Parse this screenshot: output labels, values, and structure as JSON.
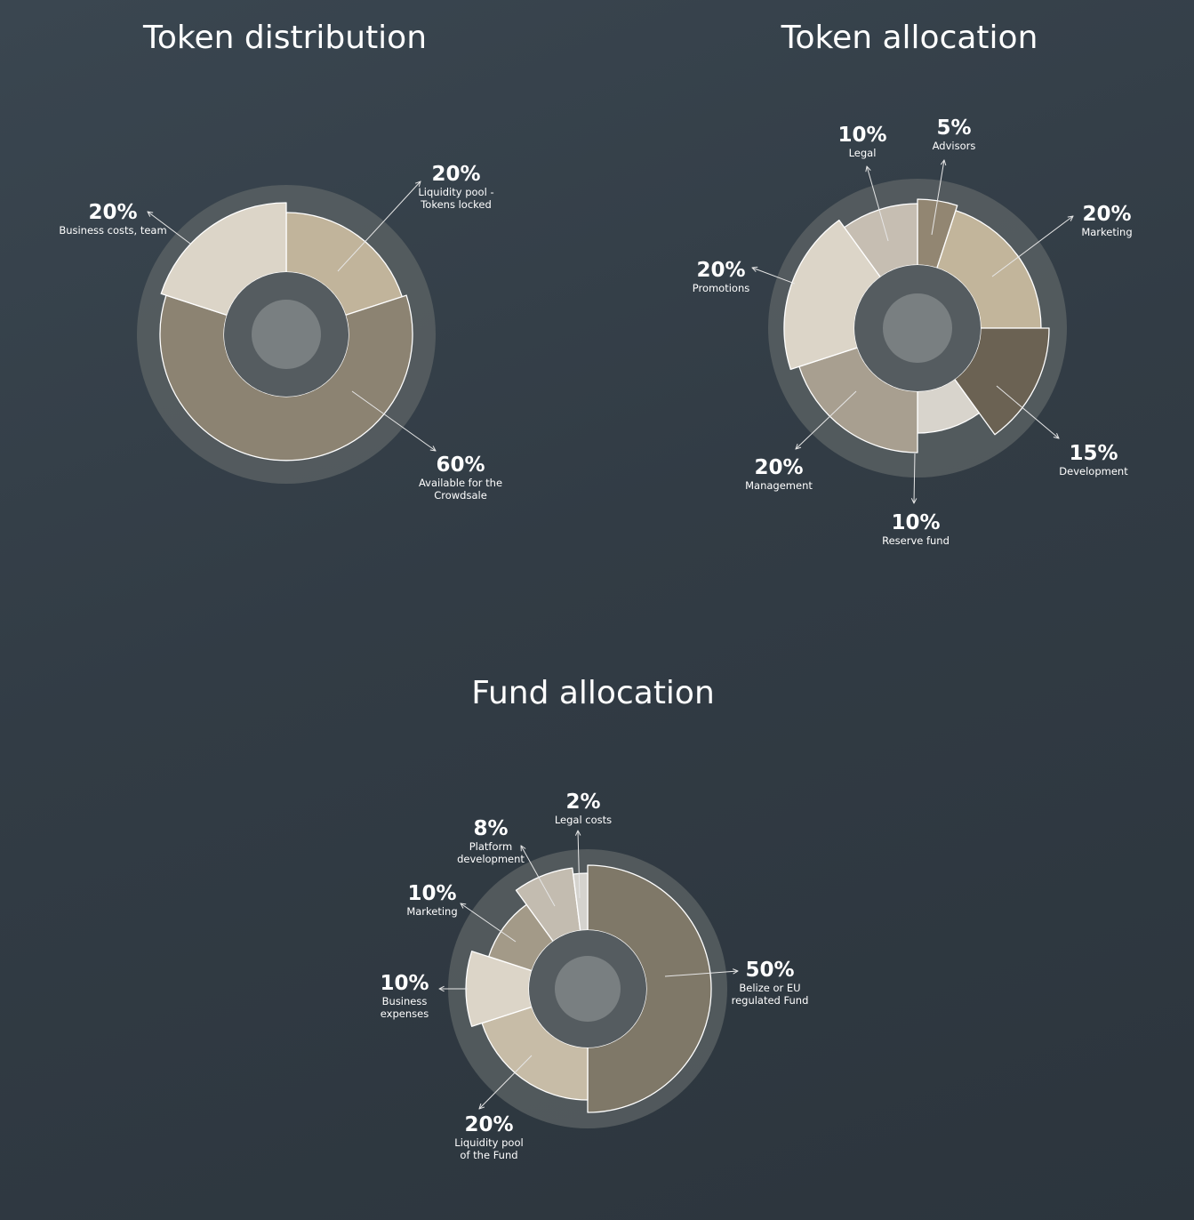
{
  "chart_data": [
    {
      "type": "pie",
      "title": "Token distribution",
      "slices": [
        {
          "value": 20,
          "percent_label": "20%",
          "label_lines": [
            "Liquidity pool -",
            "Tokens locked"
          ],
          "color": "#c1b49b"
        },
        {
          "value": 60,
          "percent_label": "60%",
          "label_lines": [
            "Available for the",
            "Crowdsale"
          ],
          "color": "#8c8372"
        },
        {
          "value": 20,
          "percent_label": "20%",
          "label_lines": [
            "Business costs, team"
          ],
          "color": "#dcd5c8"
        }
      ]
    },
    {
      "type": "pie",
      "title": "Token allocation",
      "slices": [
        {
          "value": 5,
          "percent_label": "5%",
          "label_lines": [
            "Advisors"
          ],
          "color": "#928672"
        },
        {
          "value": 20,
          "percent_label": "20%",
          "label_lines": [
            "Marketing"
          ],
          "color": "#c2b59b"
        },
        {
          "value": 15,
          "percent_label": "15%",
          "label_lines": [
            "Development"
          ],
          "color": "#6b6253"
        },
        {
          "value": 10,
          "percent_label": "10%",
          "label_lines": [
            "Reserve fund"
          ],
          "color": "#d8d4cc"
        },
        {
          "value": 20,
          "percent_label": "20%",
          "label_lines": [
            "Management"
          ],
          "color": "#a89f90"
        },
        {
          "value": 20,
          "percent_label": "20%",
          "label_lines": [
            "Promotions"
          ],
          "color": "#dcd5c8"
        },
        {
          "value": 10,
          "percent_label": "10%",
          "label_lines": [
            "Legal"
          ],
          "color": "#c6beb2"
        }
      ]
    },
    {
      "type": "pie",
      "title": "Fund allocation",
      "slices": [
        {
          "value": 50,
          "percent_label": "50%",
          "label_lines": [
            "Belize or EU",
            "regulated Fund"
          ],
          "color": "#7f7868"
        },
        {
          "value": 20,
          "percent_label": "20%",
          "label_lines": [
            "Liquidity pool",
            "of the Fund"
          ],
          "color": "#c7bca7"
        },
        {
          "value": 10,
          "percent_label": "10%",
          "label_lines": [
            "Business",
            "expenses"
          ],
          "color": "#dcd5c8"
        },
        {
          "value": 10,
          "percent_label": "10%",
          "label_lines": [
            "Marketing"
          ],
          "color": "#a39a88"
        },
        {
          "value": 8,
          "percent_label": "8%",
          "label_lines": [
            "Platform",
            "development"
          ],
          "color": "#c3bcb0"
        },
        {
          "value": 2,
          "percent_label": "2%",
          "label_lines": [
            "Legal costs"
          ],
          "color": "#d5d3ce"
        }
      ]
    }
  ]
}
